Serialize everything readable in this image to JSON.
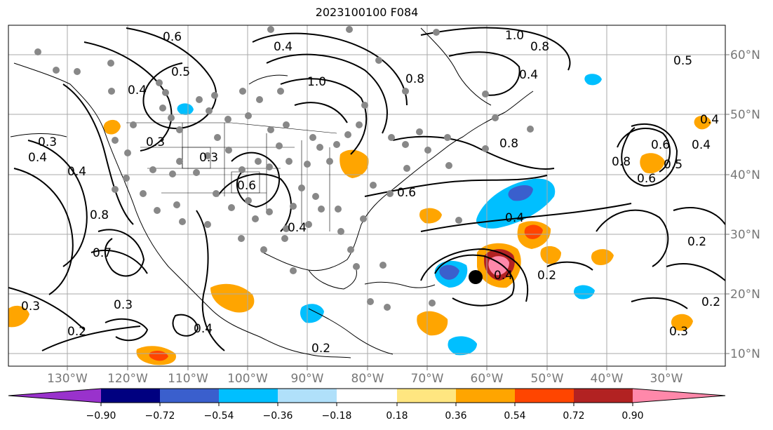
{
  "title": "2023100100 F084",
  "map": {
    "lon_labels": [
      "130°W",
      "120°W",
      "110°W",
      "100°W",
      "90°W",
      "80°W",
      "70°W",
      "60°W",
      "50°W",
      "40°W",
      "30°W"
    ],
    "lat_labels": [
      "60°N",
      "50°N",
      "40°N",
      "30°N",
      "20°N",
      "10°N"
    ],
    "contour_labels": [
      "0.6",
      "0.5",
      "0.4",
      "0.4",
      "0.3",
      "0.4",
      "0.8",
      "0.7",
      "0.3",
      "0.2",
      "0.3",
      "0.4",
      "0.3",
      "0.6",
      "0.4",
      "1.0",
      "0.8",
      "0.6",
      "1.0",
      "0.8",
      "0.4",
      "0.8",
      "0.6",
      "0.4",
      "0.5",
      "0.4",
      "0.8",
      "0.5",
      "0.6",
      "0.4",
      "0.2",
      "0.2",
      "0.4",
      "0.2",
      "0.3",
      "0.2",
      "0.3",
      "0.4"
    ],
    "colors": {
      "contour": "#000000",
      "station": "#888888",
      "grid": "#aaaaaa",
      "coast": "#000000"
    }
  },
  "colorbar": {
    "tick_labels": [
      "−0.90",
      "−0.72",
      "−0.54",
      "−0.36",
      "−0.18",
      "0.18",
      "0.36",
      "0.54",
      "0.72",
      "0.90"
    ],
    "colors": [
      "#9932CC",
      "#000080",
      "#3A5FCD",
      "#00BFFF",
      "#B0E0FA",
      "#FFFFFF",
      "#FFE680",
      "#FFA500",
      "#FF4500",
      "#B22222",
      "#FF88AA"
    ]
  }
}
